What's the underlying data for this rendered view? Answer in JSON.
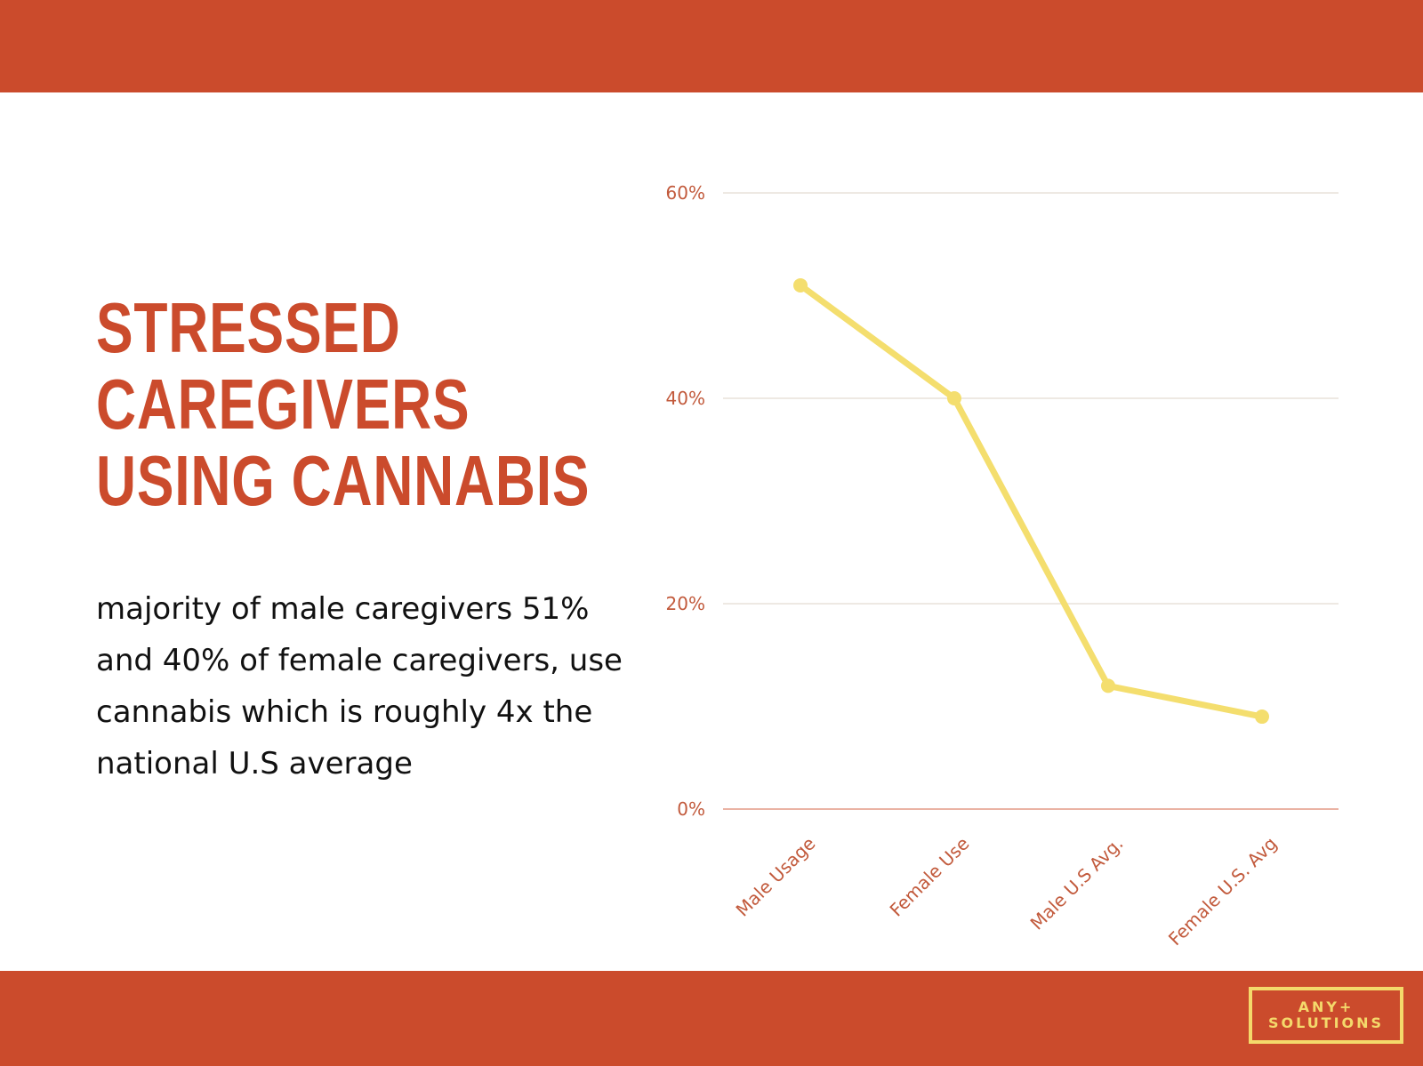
{
  "title_lines": [
    "STRESSED",
    "CAREGIVERS",
    "USING CANNABIS"
  ],
  "body_text": "majority of male caregivers 51% and 40% of female caregivers, use cannabis which is roughly 4x the national U.S average",
  "logo": {
    "line1": "ANY+",
    "line2": "SOLUTIONS"
  },
  "colors": {
    "accent": "#CB4B2C",
    "line": "#F4DE6E",
    "logo": "#F4D96B",
    "grid": "#E8E2DA",
    "baseline": "#E39A85",
    "tick_text": "#C25A3C"
  },
  "chart_data": {
    "type": "line",
    "title": "",
    "xlabel": "",
    "ylabel": "",
    "categories": [
      "Male Usage",
      "Female Use",
      "Male U.S Avg.",
      "Female U.S. Avg"
    ],
    "series": [
      {
        "values": [
          51,
          40,
          12,
          9
        ]
      }
    ],
    "ylim": [
      0,
      60
    ],
    "yticks": [
      0,
      20,
      40,
      60
    ],
    "ytick_labels": [
      "0%",
      "20%",
      "40%",
      "60%"
    ],
    "grid": true,
    "legend": "none"
  }
}
